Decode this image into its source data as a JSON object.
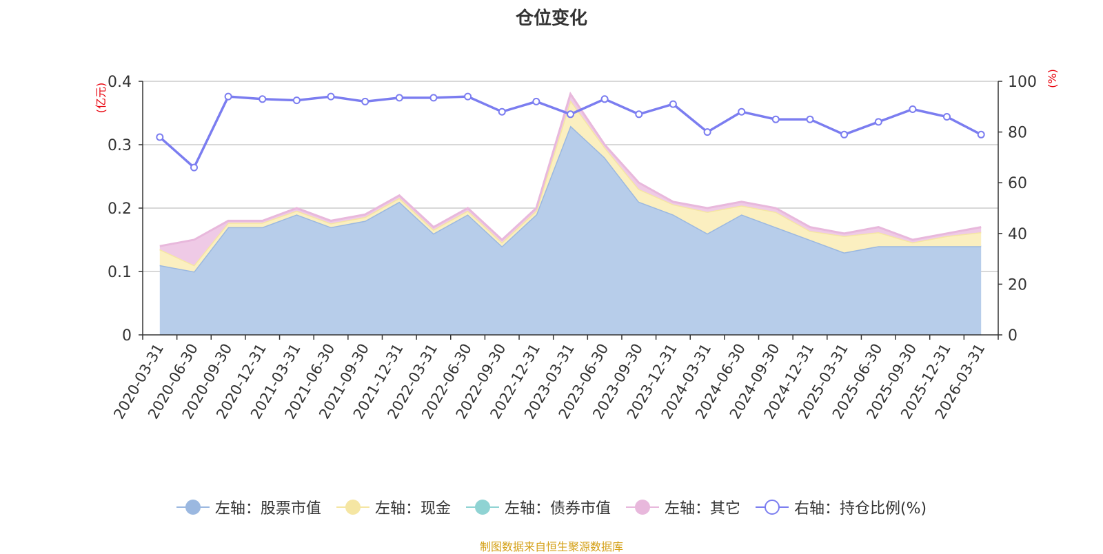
{
  "title": "仓位变化",
  "source_note": "制图数据来自恒生聚源数据库",
  "chart_data": {
    "type": "area",
    "title": "仓位变化",
    "categories": [
      "2020-03-31",
      "2020-06-30",
      "2020-09-30",
      "2020-12-31",
      "2021-03-31",
      "2021-06-30",
      "2021-09-30",
      "2021-12-31",
      "2022-03-31",
      "2022-06-30",
      "2022-09-30",
      "2022-12-31",
      "2023-03-31",
      "2023-06-30",
      "2023-09-30",
      "2023-12-31",
      "2024-03-31",
      "2024-06-30",
      "2024-09-30",
      "2024-12-31",
      "2025-03-31",
      "2025-06-30",
      "2025-09-30",
      "2025-12-31",
      "2026-03-31"
    ],
    "left_axis": {
      "label": "(亿元)",
      "min": 0,
      "max": 0.4,
      "ticks": [
        "0",
        "0.1",
        "0.2",
        "0.3",
        "0.4"
      ]
    },
    "right_axis": {
      "label": "(%)",
      "min": 0,
      "max": 100,
      "ticks": [
        "0",
        "20",
        "40",
        "60",
        "80",
        "100"
      ]
    },
    "grid": true,
    "legend_position": "bottom",
    "stacked": true,
    "series": [
      {
        "name": "左轴：股票市值",
        "axis": "left",
        "type": "area",
        "color": "#9bb8e0",
        "fill": "#b7cdea",
        "values": [
          0.11,
          0.1,
          0.17,
          0.17,
          0.19,
          0.17,
          0.18,
          0.21,
          0.16,
          0.19,
          0.14,
          0.19,
          0.33,
          0.28,
          0.21,
          0.19,
          0.16,
          0.19,
          0.17,
          0.15,
          0.13,
          0.14,
          0.14,
          0.14,
          0.14
        ]
      },
      {
        "name": "左轴：现金",
        "axis": "left",
        "type": "area",
        "color": "#f5e6a3",
        "fill": "#fbefc0",
        "values": [
          0.025,
          0.01,
          0.007,
          0.007,
          0.006,
          0.006,
          0.006,
          0.006,
          0.006,
          0.006,
          0.006,
          0.006,
          0.04,
          0.016,
          0.02,
          0.016,
          0.034,
          0.014,
          0.024,
          0.014,
          0.026,
          0.022,
          0.006,
          0.016,
          0.022
        ]
      },
      {
        "name": "左轴：债券市值",
        "axis": "left",
        "type": "area",
        "color": "#8fd3d3",
        "fill": "#b0e0e0",
        "values": [
          0,
          0,
          0,
          0,
          0,
          0,
          0,
          0,
          0,
          0,
          0,
          0,
          0,
          0,
          0,
          0,
          0,
          0,
          0,
          0,
          0,
          0,
          0,
          0,
          0
        ]
      },
      {
        "name": "左轴：其它",
        "axis": "left",
        "type": "area",
        "color": "#e8b8dc",
        "fill": "#efcae6",
        "values": [
          0.005,
          0.04,
          0.003,
          0.003,
          0.004,
          0.004,
          0.004,
          0.004,
          0.004,
          0.004,
          0.004,
          0.004,
          0.01,
          0.004,
          0.01,
          0.004,
          0.006,
          0.006,
          0.006,
          0.006,
          0.004,
          0.008,
          0.004,
          0.004,
          0.008
        ]
      },
      {
        "name": "右轴：持仓比例(%)",
        "axis": "right",
        "type": "line",
        "color": "#7b7df0",
        "values": [
          78,
          66,
          94,
          93,
          92.5,
          94,
          92,
          93.5,
          93.5,
          94,
          88,
          92,
          87,
          93,
          87,
          91,
          80,
          88,
          85,
          85,
          79,
          84,
          89,
          86,
          79
        ]
      }
    ]
  }
}
